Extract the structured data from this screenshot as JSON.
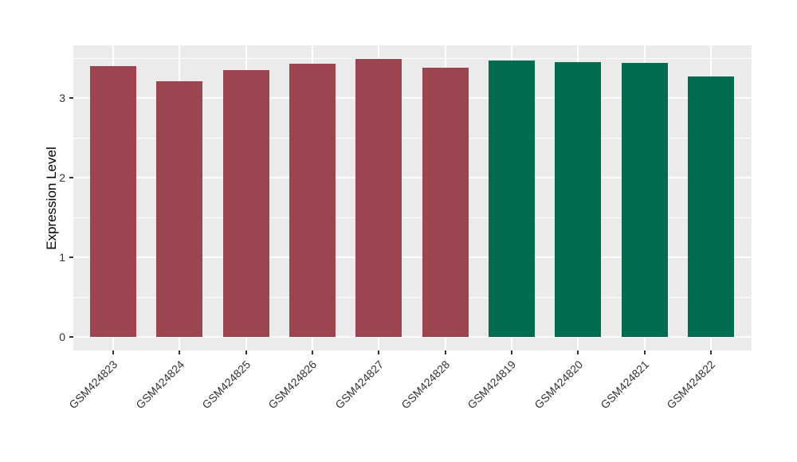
{
  "chart_data": {
    "type": "bar",
    "title": "",
    "xlabel": "",
    "ylabel": "Expression Level",
    "categories": [
      "GSM424823",
      "GSM424824",
      "GSM424825",
      "GSM424826",
      "GSM424827",
      "GSM424828",
      "GSM424819",
      "GSM424820",
      "GSM424821",
      "GSM424822"
    ],
    "values": [
      3.4,
      3.21,
      3.35,
      3.43,
      3.49,
      3.38,
      3.47,
      3.45,
      3.44,
      3.27
    ],
    "bar_colors": [
      "#9C4450",
      "#9C4450",
      "#9C4450",
      "#9C4450",
      "#9C4450",
      "#9C4450",
      "#006B4E",
      "#006B4E",
      "#006B4E",
      "#006B4E"
    ],
    "group_colors": {
      "maroon_group": "#9C4450",
      "green_group": "#006B4E"
    },
    "yticks": [
      0,
      1,
      2,
      3
    ],
    "minor_yticks": [
      0.5,
      1.5,
      2.5,
      3.5
    ],
    "ylim": [
      0,
      3.66
    ],
    "grid": true,
    "legend": "none",
    "panel_background": "#EBEBEB",
    "gridline_color": "#FFFFFF",
    "tick_text_color": "#333333",
    "tick_mark_color": "#333333"
  }
}
